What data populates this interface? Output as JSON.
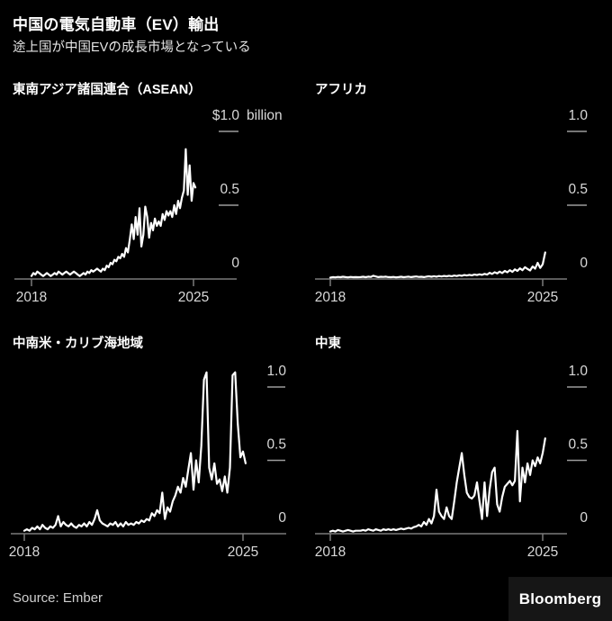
{
  "header": {
    "title": "中国の電気自動車（EV）輸出",
    "subtitle": "途上国が中国EVの成長市場となっている"
  },
  "footer": {
    "source": "Source: Ember",
    "brand": "Bloomberg"
  },
  "colors": {
    "background": "#000000",
    "line": "#ffffff",
    "axis": "#7a7a7a",
    "tick_dash": "#9c9c9c",
    "tick_label": "#d9d9d9",
    "title": "#ffffff",
    "brand_box": "#161616"
  },
  "chart_data": [
    {
      "type": "line",
      "id": "asean",
      "title": "東南アジア諸国連合（ASEAN）",
      "ylabel": "$ billion",
      "ylim": [
        0,
        1.0
      ],
      "x_ticks": [
        {
          "value": 2018,
          "label": "2018"
        },
        {
          "value": 2025,
          "label": "2025"
        }
      ],
      "y_ticks": [
        {
          "value": 1.0,
          "label": "$1.0",
          "suffix": "billion",
          "dash": true
        },
        {
          "value": 0.5,
          "label": "0.5",
          "dash": true
        },
        {
          "value": 0,
          "label": "0",
          "dash": false
        }
      ],
      "x_start": 2018,
      "points_per_year": 12,
      "values": [
        0.02,
        0.04,
        0.03,
        0.05,
        0.04,
        0.03,
        0.02,
        0.03,
        0.04,
        0.03,
        0.02,
        0.03,
        0.04,
        0.03,
        0.05,
        0.04,
        0.03,
        0.04,
        0.05,
        0.04,
        0.03,
        0.04,
        0.05,
        0.04,
        0.03,
        0.02,
        0.03,
        0.04,
        0.03,
        0.05,
        0.04,
        0.06,
        0.05,
        0.06,
        0.07,
        0.06,
        0.05,
        0.07,
        0.06,
        0.09,
        0.08,
        0.11,
        0.1,
        0.13,
        0.12,
        0.15,
        0.14,
        0.17,
        0.15,
        0.21,
        0.18,
        0.27,
        0.37,
        0.27,
        0.42,
        0.3,
        0.48,
        0.22,
        0.3,
        0.49,
        0.42,
        0.28,
        0.38,
        0.33,
        0.41,
        0.36,
        0.39,
        0.36,
        0.44,
        0.4,
        0.46,
        0.43,
        0.46,
        0.42,
        0.5,
        0.44,
        0.53,
        0.48,
        0.55,
        0.6,
        0.88,
        0.57,
        0.77,
        0.53,
        0.65,
        0.62
      ]
    },
    {
      "type": "line",
      "id": "africa",
      "title": "アフリカ",
      "ylabel": "$ billion",
      "ylim": [
        0,
        1.0
      ],
      "x_ticks": [
        {
          "value": 2018,
          "label": "2018"
        },
        {
          "value": 2025,
          "label": "2025"
        }
      ],
      "y_ticks": [
        {
          "value": 1.0,
          "label": "1.0",
          "dash": true
        },
        {
          "value": 0.5,
          "label": "0.5",
          "dash": true
        },
        {
          "value": 0,
          "label": "0",
          "dash": false
        }
      ],
      "x_start": 2018,
      "points_per_year": 12,
      "values": [
        0.01,
        0.013,
        0.011,
        0.014,
        0.012,
        0.015,
        0.013,
        0.011,
        0.014,
        0.012,
        0.013,
        0.012,
        0.013,
        0.015,
        0.012,
        0.016,
        0.014,
        0.022,
        0.017,
        0.013,
        0.015,
        0.014,
        0.016,
        0.013,
        0.012,
        0.014,
        0.011,
        0.013,
        0.015,
        0.012,
        0.014,
        0.016,
        0.013,
        0.015,
        0.017,
        0.014,
        0.015,
        0.013,
        0.016,
        0.018,
        0.015,
        0.019,
        0.016,
        0.02,
        0.017,
        0.021,
        0.018,
        0.022,
        0.019,
        0.023,
        0.02,
        0.025,
        0.022,
        0.027,
        0.024,
        0.028,
        0.025,
        0.03,
        0.027,
        0.032,
        0.028,
        0.035,
        0.03,
        0.042,
        0.034,
        0.046,
        0.038,
        0.05,
        0.04,
        0.055,
        0.045,
        0.06,
        0.048,
        0.065,
        0.055,
        0.072,
        0.06,
        0.08,
        0.068,
        0.058,
        0.085,
        0.07,
        0.11,
        0.075,
        0.1,
        0.18
      ]
    },
    {
      "type": "line",
      "id": "latam-caribbean",
      "title": "中南米・カリブ海地域",
      "ylabel": "$ billion",
      "ylim": [
        0,
        1.0
      ],
      "x_ticks": [
        {
          "value": 2018,
          "label": "2018"
        },
        {
          "value": 2025,
          "label": "2025"
        }
      ],
      "y_ticks": [
        {
          "value": 1.0,
          "label": "1.0",
          "dash": true
        },
        {
          "value": 0.5,
          "label": "0.5",
          "dash": true
        },
        {
          "value": 0,
          "label": "0",
          "dash": false
        }
      ],
      "x_start": 2018,
      "points_per_year": 12,
      "values": [
        0.02,
        0.03,
        0.02,
        0.04,
        0.03,
        0.05,
        0.03,
        0.06,
        0.04,
        0.03,
        0.05,
        0.04,
        0.06,
        0.12,
        0.05,
        0.08,
        0.06,
        0.05,
        0.07,
        0.05,
        0.04,
        0.06,
        0.05,
        0.07,
        0.05,
        0.08,
        0.06,
        0.1,
        0.16,
        0.09,
        0.07,
        0.06,
        0.05,
        0.07,
        0.06,
        0.08,
        0.05,
        0.07,
        0.05,
        0.08,
        0.06,
        0.07,
        0.06,
        0.08,
        0.07,
        0.09,
        0.08,
        0.1,
        0.09,
        0.14,
        0.12,
        0.16,
        0.14,
        0.28,
        0.1,
        0.18,
        0.15,
        0.22,
        0.26,
        0.32,
        0.28,
        0.38,
        0.32,
        0.44,
        0.55,
        0.3,
        0.5,
        0.35,
        0.6,
        1.05,
        1.1,
        0.45,
        0.37,
        0.48,
        0.34,
        0.37,
        0.29,
        0.39,
        0.28,
        0.45,
        1.08,
        1.1,
        0.75,
        0.52,
        0.56,
        0.48
      ]
    },
    {
      "type": "line",
      "id": "middle-east",
      "title": "中東",
      "ylabel": "$ billion",
      "ylim": [
        0,
        1.0
      ],
      "x_ticks": [
        {
          "value": 2018,
          "label": "2018"
        },
        {
          "value": 2025,
          "label": "2025"
        }
      ],
      "y_ticks": [
        {
          "value": 1.0,
          "label": "1.0",
          "dash": true
        },
        {
          "value": 0.5,
          "label": "0.5",
          "dash": true
        },
        {
          "value": 0,
          "label": "0",
          "dash": false
        }
      ],
      "x_start": 2018,
      "points_per_year": 12,
      "values": [
        0.015,
        0.02,
        0.015,
        0.025,
        0.02,
        0.015,
        0.02,
        0.025,
        0.02,
        0.015,
        0.02,
        0.02,
        0.02,
        0.025,
        0.02,
        0.03,
        0.025,
        0.02,
        0.03,
        0.025,
        0.02,
        0.03,
        0.025,
        0.03,
        0.025,
        0.03,
        0.025,
        0.03,
        0.035,
        0.03,
        0.035,
        0.04,
        0.035,
        0.045,
        0.05,
        0.06,
        0.05,
        0.08,
        0.06,
        0.1,
        0.07,
        0.12,
        0.3,
        0.15,
        0.12,
        0.1,
        0.18,
        0.12,
        0.1,
        0.22,
        0.35,
        0.45,
        0.55,
        0.4,
        0.28,
        0.25,
        0.24,
        0.26,
        0.35,
        0.22,
        0.1,
        0.35,
        0.12,
        0.3,
        0.42,
        0.45,
        0.2,
        0.15,
        0.25,
        0.32,
        0.34,
        0.36,
        0.33,
        0.36,
        0.7,
        0.22,
        0.45,
        0.35,
        0.48,
        0.4,
        0.5,
        0.46,
        0.52,
        0.48,
        0.55,
        0.65
      ]
    }
  ]
}
